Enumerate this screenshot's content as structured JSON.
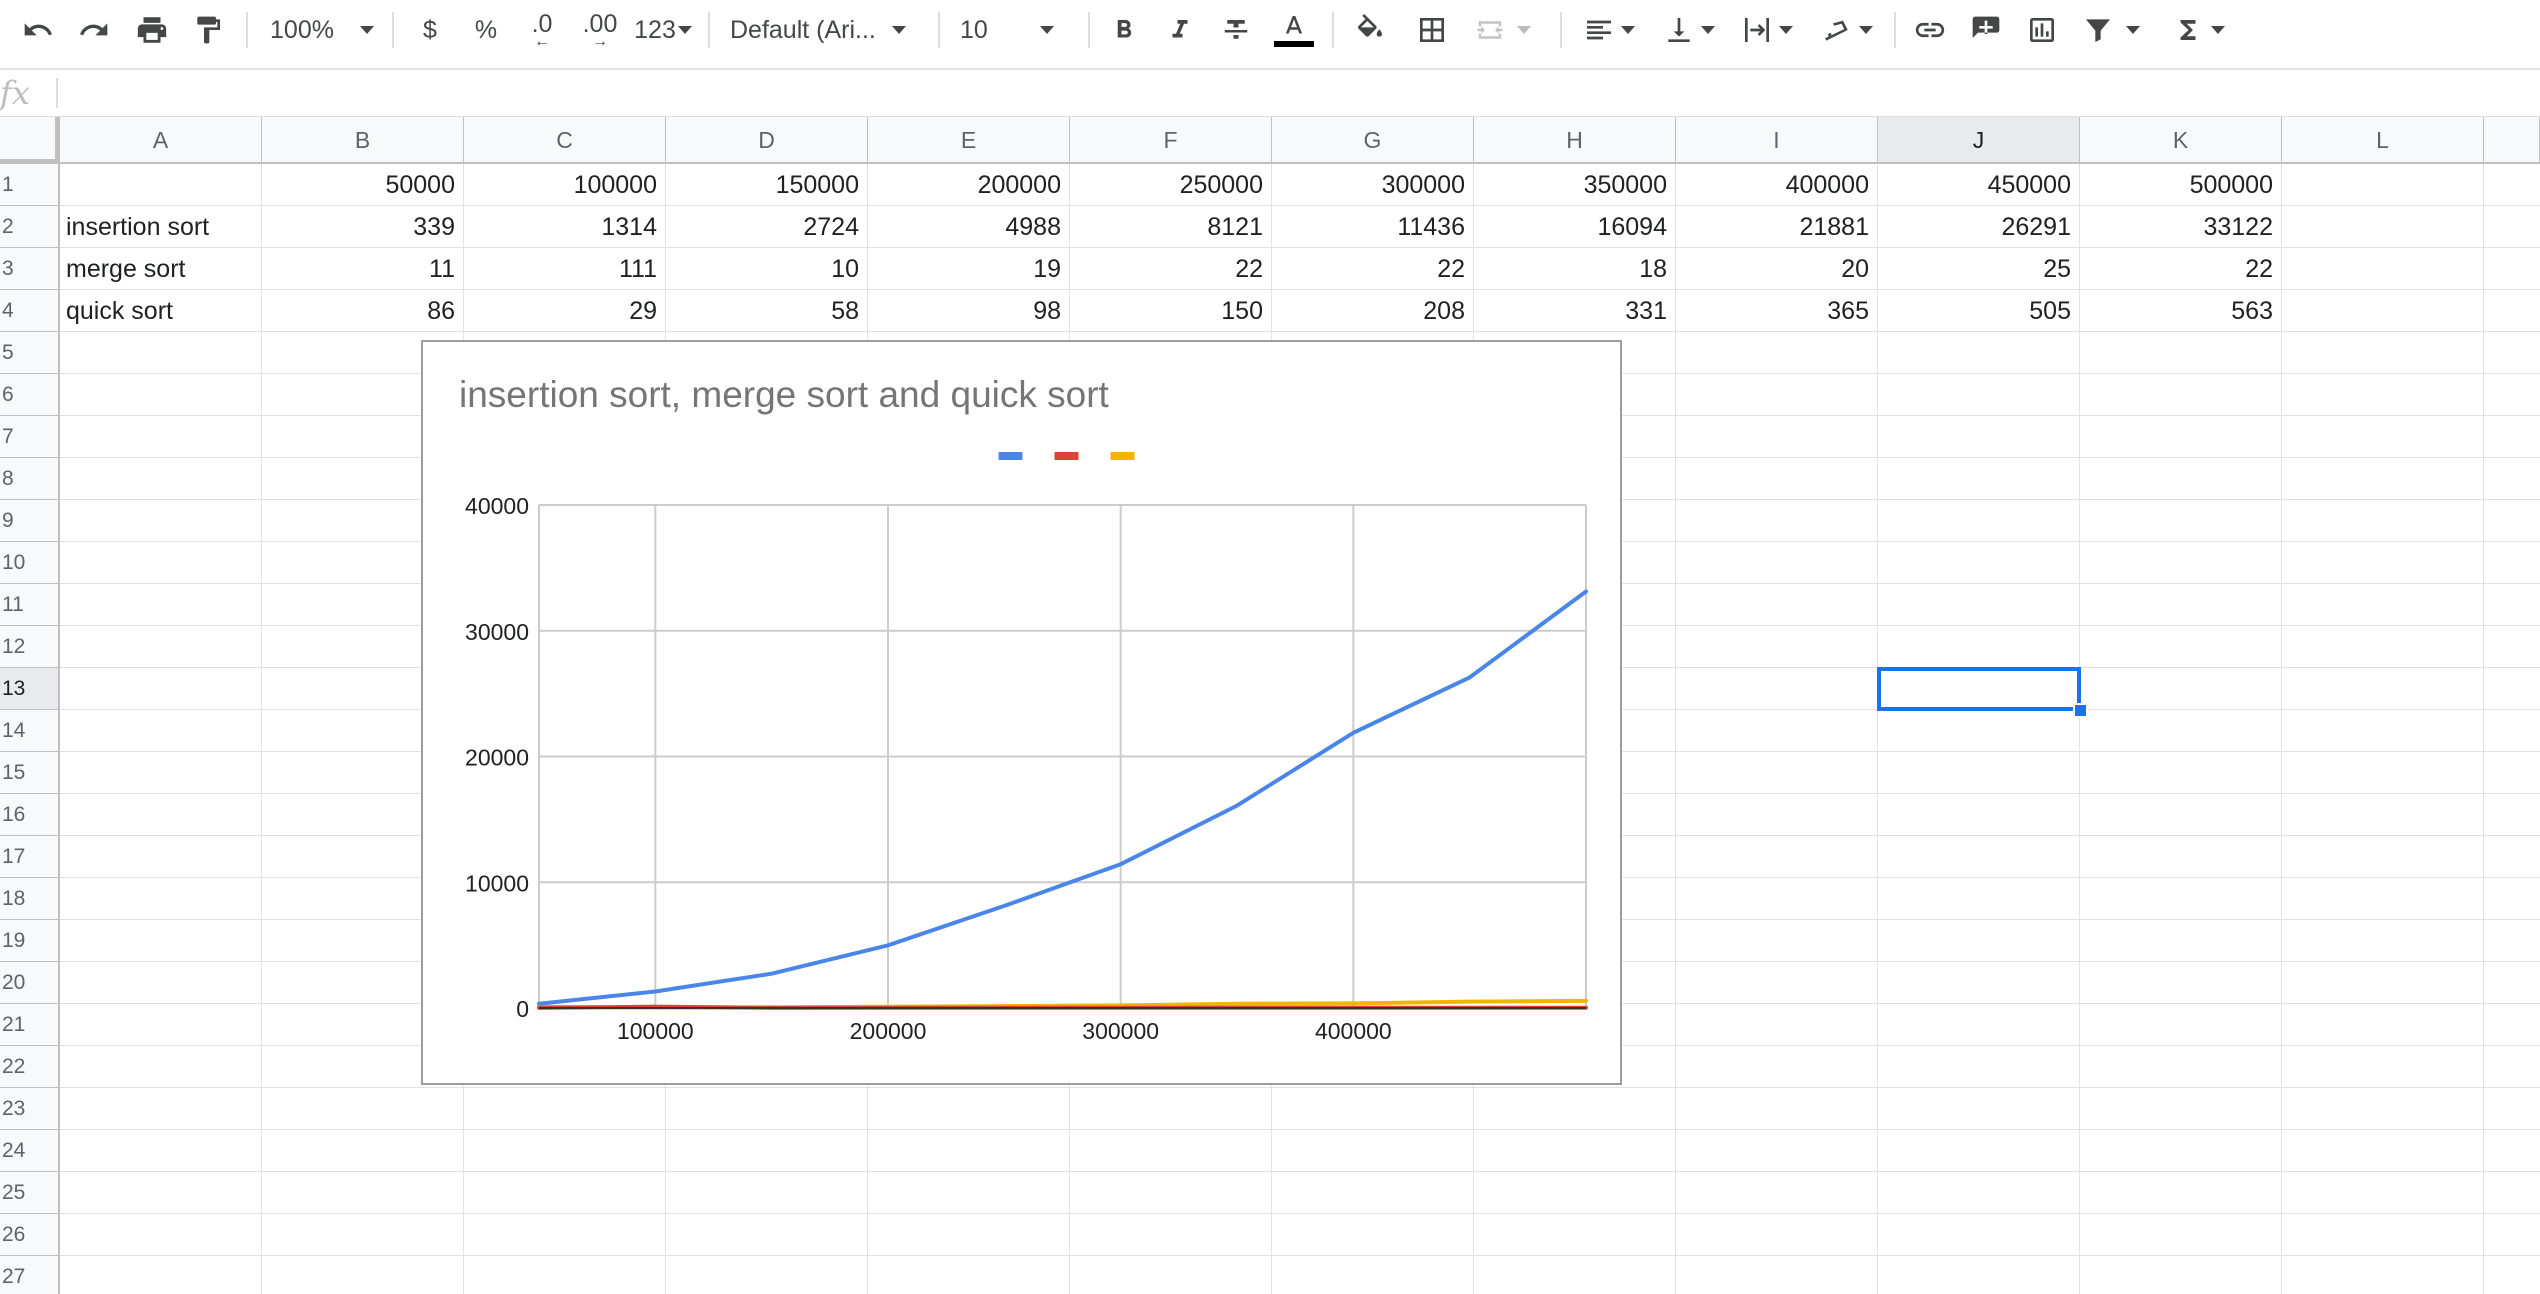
{
  "toolbar": {
    "zoom": "100%",
    "currency_label": "$",
    "percent_label": "%",
    "decrease_decimals_label": ".0",
    "increase_decimals_label": ".00",
    "more_formats_label": "123",
    "font_family": "Default (Ari...",
    "font_size": "10"
  },
  "formula_bar": {
    "fx_label": "fx",
    "value": ""
  },
  "sheet": {
    "columns": [
      "A",
      "B",
      "C",
      "D",
      "E",
      "F",
      "G",
      "H",
      "I",
      "J",
      "K",
      "L"
    ],
    "rows": [
      "1",
      "2",
      "3",
      "4",
      "5",
      "6",
      "7",
      "8",
      "9",
      "10",
      "11",
      "12",
      "13",
      "14",
      "15",
      "16",
      "17",
      "18",
      "19",
      "20",
      "21",
      "22",
      "23",
      "24",
      "25",
      "26",
      "27"
    ],
    "active_column": "J",
    "active_row": "13",
    "cells": [
      [
        "",
        "50000",
        "100000",
        "150000",
        "200000",
        "250000",
        "300000",
        "350000",
        "400000",
        "450000",
        "500000",
        ""
      ],
      [
        "insertion sort",
        "339",
        "1314",
        "2724",
        "4988",
        "8121",
        "11436",
        "16094",
        "21881",
        "26291",
        "33122",
        ""
      ],
      [
        "merge sort",
        "11",
        "111",
        "10",
        "19",
        "22",
        "22",
        "18",
        "20",
        "25",
        "22",
        ""
      ],
      [
        "quick sort",
        "86",
        "29",
        "58",
        "98",
        "150",
        "208",
        "331",
        "365",
        "505",
        "563",
        ""
      ]
    ]
  },
  "chart_data": {
    "type": "line",
    "title": "insertion sort, merge sort and quick sort",
    "xlabel": "",
    "ylabel": "",
    "x": [
      50000,
      100000,
      150000,
      200000,
      250000,
      300000,
      350000,
      400000,
      450000,
      500000
    ],
    "xlim": [
      50000,
      500000
    ],
    "ylim": [
      0,
      40000
    ],
    "x_ticks": [
      "100000",
      "200000",
      "300000",
      "400000"
    ],
    "y_ticks": [
      "0",
      "10000",
      "20000",
      "30000",
      "40000"
    ],
    "grid": true,
    "legend_position": "top",
    "series": [
      {
        "values": [
          339,
          1314,
          2724,
          4988,
          8121,
          11436,
          16094,
          21881,
          26291,
          33122
        ],
        "color": "#4a86e8"
      },
      {
        "values": [
          11,
          111,
          10,
          19,
          22,
          22,
          18,
          20,
          25,
          22
        ],
        "color": "#db4437"
      },
      {
        "values": [
          86,
          29,
          58,
          98,
          150,
          208,
          331,
          365,
          505,
          563
        ],
        "color": "#f4b400"
      }
    ]
  }
}
